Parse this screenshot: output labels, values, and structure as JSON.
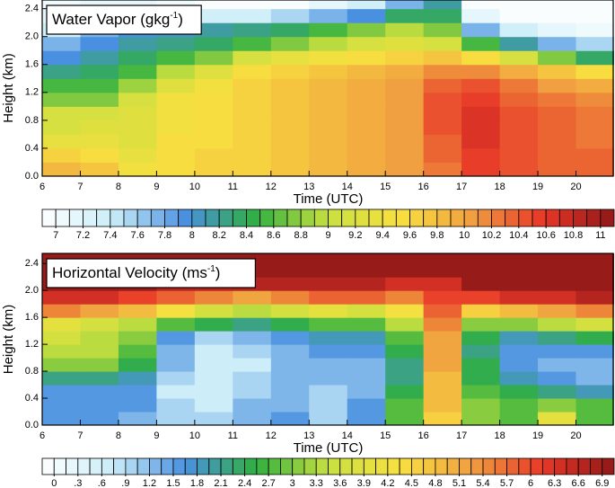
{
  "chart_data": [
    {
      "type": "heatmap",
      "title": [
        "Water Vapor (gkg",
        "-1",
        ")"
      ],
      "xlabel": "Time (UTC)",
      "ylabel": "Height (km)",
      "xlim": [
        6,
        21
      ],
      "ylim": [
        0,
        2.55
      ],
      "xticks": [
        6,
        7,
        8,
        9,
        10,
        11,
        12,
        13,
        14,
        15,
        16,
        17,
        18,
        19,
        20
      ],
      "yticks": [
        {
          "value": 0,
          "label": "0.0"
        },
        0.4,
        0.8,
        1.2,
        1.6,
        {
          "value": 2,
          "label": "2.0"
        },
        2.4
      ],
      "x": [
        6.5,
        7.5,
        8.5,
        9.5,
        10.5,
        11.5,
        12.5,
        13.5,
        14.5,
        15.5,
        16.5,
        17.5,
        18.5,
        19.5,
        20.5
      ],
      "y": [
        0.1,
        0.3,
        0.5,
        0.7,
        0.9,
        1.1,
        1.3,
        1.5,
        1.7,
        1.9,
        2.1,
        2.3,
        2.5
      ],
      "z": [
        [
          9.9,
          9.8,
          9.5,
          9.6,
          9.7,
          9.7,
          9.8,
          9.9,
          10,
          10.1,
          10.3,
          10.6,
          10.5,
          10.4,
          10.4
        ],
        [
          9.7,
          9.6,
          9.4,
          9.6,
          9.7,
          9.7,
          9.8,
          9.9,
          10,
          10.1,
          10.4,
          10.6,
          10.5,
          10.4,
          10.4
        ],
        [
          9.4,
          9.4,
          9.3,
          9.6,
          9.6,
          9.7,
          9.8,
          9.9,
          10,
          10.1,
          10.4,
          10.7,
          10.5,
          10.4,
          10.3
        ],
        [
          9.2,
          9.3,
          9.3,
          9.5,
          9.6,
          9.7,
          9.8,
          9.9,
          10,
          10.1,
          10.5,
          10.7,
          10.5,
          10.4,
          10.3
        ],
        [
          9.2,
          9.2,
          9.3,
          9.5,
          9.6,
          9.7,
          9.8,
          9.9,
          10,
          10.1,
          10.5,
          10.7,
          10.5,
          10.4,
          10.3
        ],
        [
          8.8,
          8.8,
          9.2,
          9.5,
          9.6,
          9.7,
          9.8,
          9.9,
          10,
          10.1,
          10.5,
          10.6,
          10.4,
          10.3,
          10.2
        ],
        [
          8.6,
          8.6,
          8.9,
          9.3,
          9.5,
          9.7,
          9.8,
          9.9,
          10,
          10.1,
          10.4,
          10.5,
          10.3,
          10.1,
          10
        ],
        [
          8.3,
          8.4,
          8.6,
          9,
          9.3,
          9.6,
          9.7,
          9.8,
          9.9,
          10,
          10.2,
          10.2,
          10,
          9.8,
          9.6
        ],
        [
          8,
          8.2,
          8.4,
          8.6,
          8.8,
          9.2,
          9.4,
          9.5,
          9.6,
          9.7,
          9.8,
          9.6,
          9.2,
          8.8,
          8.4
        ],
        [
          7.8,
          8,
          8.2,
          8.3,
          8.4,
          8.6,
          8.8,
          9,
          9.2,
          9.3,
          9.2,
          8.6,
          8.2,
          7.8,
          7.6
        ],
        [
          7.4,
          7.8,
          8,
          8.1,
          8.2,
          8.3,
          8.4,
          8.6,
          8.8,
          9,
          8.8,
          7.8,
          7.4,
          7.2,
          7.1
        ],
        [
          7.2,
          7.5,
          7.7,
          7.6,
          7.4,
          7.4,
          7.6,
          7.8,
          8,
          8.4,
          8.4,
          7.2,
          7,
          7,
          6.9
        ],
        [
          7.1,
          7.2,
          7.2,
          7.1,
          7,
          7,
          7,
          7.2,
          7.4,
          7.8,
          8.2,
          6.9,
          6.9,
          6.9,
          6.9
        ]
      ],
      "colorbar": {
        "lim": [
          6.9,
          11.1
        ],
        "ticks": [
          7,
          7.2,
          7.4,
          7.6,
          7.8,
          8,
          8.2,
          8.4,
          8.6,
          8.8,
          9,
          9.2,
          9.4,
          9.6,
          9.8,
          10,
          10.2,
          10.4,
          10.6,
          10.8,
          11
        ],
        "colormap": [
          "#ffffff",
          "#c8ecf8",
          "#4a90e0",
          "#30b040",
          "#c8e040",
          "#f8e040",
          "#f0a040",
          "#e83828",
          "#901818"
        ]
      }
    },
    {
      "type": "heatmap",
      "title": [
        "Horizontal Velocity (ms",
        "-1",
        ")"
      ],
      "xlabel": "Time (UTC)",
      "ylabel": "Height (km)",
      "xlim": [
        6,
        21
      ],
      "ylim": [
        0,
        2.55
      ],
      "xticks": [
        6,
        7,
        8,
        9,
        10,
        11,
        12,
        13,
        14,
        15,
        16,
        17,
        18,
        19,
        20
      ],
      "yticks": [
        {
          "value": 0,
          "label": "0.0"
        },
        0.4,
        0.8,
        1.2,
        1.6,
        {
          "value": 2,
          "label": "2.0"
        },
        2.4
      ],
      "x": [
        6.5,
        7.5,
        8.5,
        9.5,
        10.5,
        11.5,
        12.5,
        13.5,
        14.5,
        15.5,
        16.5,
        17.5,
        18.5,
        19.5,
        20.5
      ],
      "y": [
        0.1,
        0.3,
        0.5,
        0.7,
        0.9,
        1.1,
        1.3,
        1.5,
        1.7,
        1.9,
        2.1,
        2.3,
        2.5
      ],
      "z": [
        [
          1.5,
          1.5,
          1.2,
          0.9,
          0.9,
          1.2,
          1.5,
          0.9,
          1.5,
          2.7,
          4.5,
          3,
          2.7,
          3.9,
          2.7
        ],
        [
          1.5,
          1.5,
          1.5,
          0.9,
          0.6,
          1.2,
          1.2,
          0.9,
          1.5,
          2.7,
          4.8,
          3,
          2.7,
          3,
          2.7
        ],
        [
          1.5,
          1.5,
          1.5,
          0.6,
          0.6,
          0.9,
          1.2,
          0.9,
          1.2,
          2.4,
          4.8,
          2.7,
          2.4,
          2.1,
          1.8
        ],
        [
          2.1,
          2.1,
          1.8,
          0.9,
          0.6,
          0.9,
          1.2,
          1.2,
          1.2,
          2.1,
          4.8,
          2.4,
          1.8,
          1.5,
          1.2
        ],
        [
          3,
          3,
          2.4,
          1.2,
          0.6,
          0.6,
          1.2,
          1.2,
          1.2,
          2.1,
          5.1,
          2.4,
          1.5,
          1.2,
          1.2
        ],
        [
          3.3,
          3.3,
          2.7,
          1.2,
          0.6,
          0.9,
          1.2,
          1.5,
          1.5,
          2.4,
          5.1,
          2.1,
          1.5,
          1.5,
          1.5
        ],
        [
          3.6,
          3.3,
          3,
          1.5,
          0.9,
          1.2,
          1.5,
          1.8,
          1.8,
          2.7,
          5.1,
          2.4,
          1.8,
          2.1,
          2.4
        ],
        [
          3.9,
          3.6,
          3.3,
          2.7,
          2.4,
          2.1,
          2.4,
          2.7,
          2.7,
          3.3,
          5.4,
          3,
          3,
          3.3,
          3.6
        ],
        [
          5.4,
          5.1,
          4.8,
          4.2,
          3.6,
          3.3,
          3.6,
          3.9,
          3.6,
          4.2,
          5.7,
          4.5,
          4.8,
          5.1,
          5.4
        ],
        [
          6.3,
          6.3,
          6,
          5.7,
          5.4,
          5.1,
          5.4,
          5.7,
          5.7,
          5.4,
          6,
          6,
          6.3,
          6.3,
          6.6
        ],
        [
          6.9,
          6.9,
          6.9,
          6.6,
          6.6,
          6.6,
          6.6,
          6.6,
          6.6,
          6.3,
          6.3,
          6.9,
          6.9,
          6.9,
          6.9
        ],
        [
          6.9,
          6.9,
          6.9,
          6.9,
          6.9,
          6.9,
          6.9,
          6.9,
          6.9,
          6.9,
          6.9,
          6.9,
          6.9,
          6.9,
          6.9
        ],
        [
          6.9,
          6.9,
          6.9,
          6.9,
          6.9,
          6.9,
          6.9,
          6.9,
          6.9,
          6.9,
          6.9,
          6.9,
          6.9,
          6.9,
          6.9
        ]
      ],
      "colorbar": {
        "lim": [
          -0.15,
          7.05
        ],
        "ticks": [
          0,
          {
            "value": 0.3,
            "label": ".3"
          },
          {
            "value": 0.6,
            "label": ".6"
          },
          {
            "value": 0.9,
            "label": ".9"
          },
          1.2,
          1.5,
          1.8,
          2.1,
          2.4,
          2.7,
          3,
          3.3,
          3.6,
          3.9,
          4.2,
          4.5,
          4.8,
          5.1,
          5.4,
          5.7,
          6,
          6.3,
          6.6,
          6.9
        ],
        "colormap": [
          "#ffffff",
          "#c8ecf8",
          "#4a90e0",
          "#30b040",
          "#c8e040",
          "#f8e040",
          "#f0a040",
          "#e83828",
          "#901818"
        ]
      }
    }
  ]
}
